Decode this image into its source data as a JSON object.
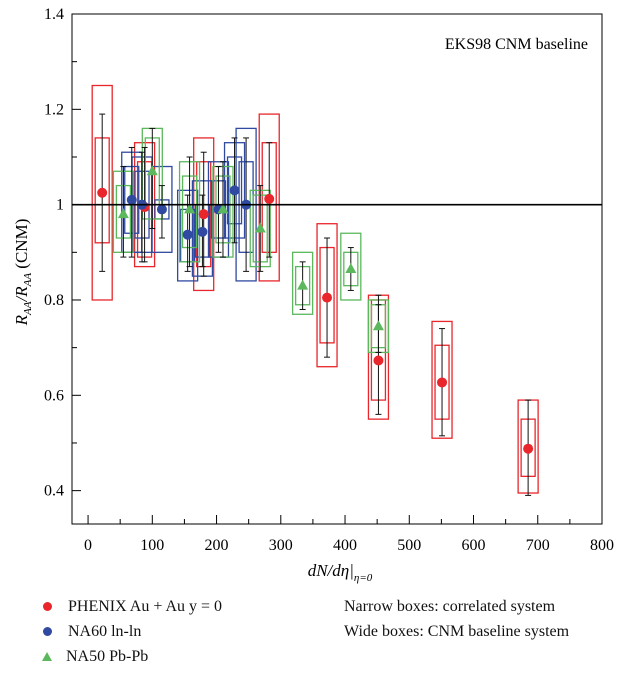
{
  "chart_data": {
    "type": "scatter",
    "annotation": "EKS98 CNM baseline",
    "xlabel": "dN/dη|η=0",
    "ylabel": "R_AA/R_AA (CNM)",
    "xlim": [
      -25,
      800
    ],
    "ylim": [
      0.33,
      1.4
    ],
    "x_ticks": [
      0,
      100,
      200,
      300,
      400,
      500,
      600,
      700,
      800
    ],
    "y_ticks": [
      0.4,
      0.6,
      0.8,
      1.0,
      1.2,
      1.4
    ],
    "y_tick_labels": [
      "0.4",
      "0.6",
      "0.8",
      "1",
      "1.2",
      "1.4"
    ],
    "reference_line": 1.0,
    "grid": false,
    "legend_placement": "bottom",
    "series": [
      {
        "name": "PHENIX Au + Au y = 0",
        "marker": "circle",
        "color": "#e8262b",
        "points": [
          {
            "x": 22,
            "y": 1.025,
            "err": [
              0.86,
              1.19
            ],
            "narrow": [
              0.92,
              1.14
            ],
            "wide": [
              0.8,
              1.25
            ]
          },
          {
            "x": 88,
            "y": 0.995,
            "err": [
              0.88,
              1.12
            ],
            "narrow": [
              0.89,
              1.09
            ],
            "wide": [
              0.87,
              1.13
            ]
          },
          {
            "x": 180,
            "y": 0.98,
            "err": [
              0.85,
              1.11
            ],
            "narrow": [
              0.87,
              1.09
            ],
            "wide": [
              0.82,
              1.14
            ]
          },
          {
            "x": 282,
            "y": 1.012,
            "err": [
              0.89,
              1.13
            ],
            "narrow": [
              0.9,
              1.13
            ],
            "wide": [
              0.84,
              1.19
            ]
          },
          {
            "x": 372,
            "y": 0.805,
            "err": [
              0.68,
              0.93
            ],
            "narrow": [
              0.71,
              0.91
            ],
            "wide": [
              0.66,
              0.96
            ]
          },
          {
            "x": 452,
            "y": 0.673,
            "err": [
              0.56,
              0.79
            ],
            "narrow": [
              0.59,
              0.8
            ],
            "wide": [
              0.55,
              0.81
            ]
          },
          {
            "x": 551,
            "y": 0.627,
            "err": [
              0.515,
              0.74
            ],
            "narrow": [
              0.55,
              0.705
            ],
            "wide": [
              0.51,
              0.755
            ]
          },
          {
            "x": 685,
            "y": 0.488,
            "err": [
              0.39,
              0.59
            ],
            "narrow": [
              0.43,
              0.55
            ],
            "wide": [
              0.395,
              0.59
            ]
          }
        ]
      },
      {
        "name": "NA60 ln-ln",
        "marker": "circle",
        "color": "#2f4aa0",
        "points": [
          {
            "x": 68,
            "y": 1.01,
            "err": [
              0.89,
              1.12
            ],
            "narrow": [
              0.94,
              1.08
            ],
            "wide": [
              0.9,
              1.11
            ]
          },
          {
            "x": 84,
            "y": 1.0,
            "err": [
              0.88,
              1.11
            ],
            "narrow": [
              0.93,
              1.07
            ],
            "wide": [
              0.9,
              1.1
            ]
          },
          {
            "x": 115,
            "y": 0.99,
            "err": [
              0.93,
              1.04
            ],
            "narrow": [
              0.97,
              1.01
            ],
            "wide": [
              0.9,
              1.08
            ]
          },
          {
            "x": 155,
            "y": 0.937,
            "err": [
              0.86,
              1.02
            ],
            "narrow": [
              0.88,
              0.99
            ],
            "wide": [
              0.84,
              1.03
            ]
          },
          {
            "x": 178,
            "y": 0.943,
            "err": [
              0.87,
              1.02
            ],
            "narrow": [
              0.89,
              1.0
            ],
            "wide": [
              0.85,
              1.05
            ]
          },
          {
            "x": 203,
            "y": 0.99,
            "err": [
              0.9,
              1.08
            ],
            "narrow": [
              0.93,
              1.05
            ],
            "wide": [
              0.89,
              1.09
            ]
          },
          {
            "x": 228,
            "y": 1.03,
            "err": [
              0.92,
              1.14
            ],
            "narrow": [
              0.96,
              1.1
            ],
            "wide": [
              0.93,
              1.13
            ]
          },
          {
            "x": 246,
            "y": 1.0,
            "err": [
              0.86,
              1.14
            ],
            "narrow": [
              0.9,
              1.09
            ],
            "wide": [
              0.84,
              1.16
            ]
          }
        ]
      },
      {
        "name": "NA50 Pb-Pb",
        "marker": "triangle",
        "color": "#5cb85c",
        "points": [
          {
            "x": 55,
            "y": 0.98,
            "err": [
              0.89,
              1.08
            ],
            "narrow": [
              0.93,
              1.04
            ],
            "wide": [
              0.9,
              1.07
            ]
          },
          {
            "x": 100,
            "y": 1.07,
            "err": [
              0.95,
              1.16
            ],
            "narrow": [
              1.0,
              1.14
            ],
            "wide": [
              0.97,
              1.16
            ]
          },
          {
            "x": 158,
            "y": 0.99,
            "err": [
              0.87,
              1.1
            ],
            "narrow": [
              0.91,
              1.06
            ],
            "wide": [
              0.88,
              1.09
            ]
          },
          {
            "x": 210,
            "y": 0.99,
            "err": [
              0.89,
              1.09
            ],
            "narrow": [
              0.92,
              1.06
            ],
            "wide": [
              0.89,
              1.08
            ]
          },
          {
            "x": 268,
            "y": 0.95,
            "err": [
              0.86,
              1.04
            ],
            "narrow": [
              0.88,
              1.02
            ],
            "wide": [
              0.87,
              1.03
            ]
          },
          {
            "x": 334,
            "y": 0.83,
            "err": [
              0.78,
              0.88
            ],
            "narrow": [
              0.79,
              0.87
            ],
            "wide": [
              0.77,
              0.9
            ]
          },
          {
            "x": 409,
            "y": 0.865,
            "err": [
              0.82,
              0.91
            ],
            "narrow": [
              0.83,
              0.9
            ],
            "wide": [
              0.8,
              0.94
            ]
          },
          {
            "x": 452,
            "y": 0.745,
            "err": [
              0.69,
              0.81
            ],
            "narrow": [
              0.7,
              0.79
            ],
            "wide": [
              0.69,
              0.8
            ]
          }
        ]
      }
    ]
  },
  "legend": {
    "items": [
      {
        "label": "PHENIX Au + Au y = 0",
        "color": "#e8262b",
        "marker": "circle"
      },
      {
        "label": "NA60 ln-ln",
        "color": "#2f4aa0",
        "marker": "circle"
      },
      {
        "label": "NA50 Pb-Pb",
        "color": "#5cb85c",
        "marker": "triangle"
      }
    ],
    "notes": [
      "Narrow boxes: correlated system",
      "Wide boxes: CNM baseline system"
    ]
  }
}
